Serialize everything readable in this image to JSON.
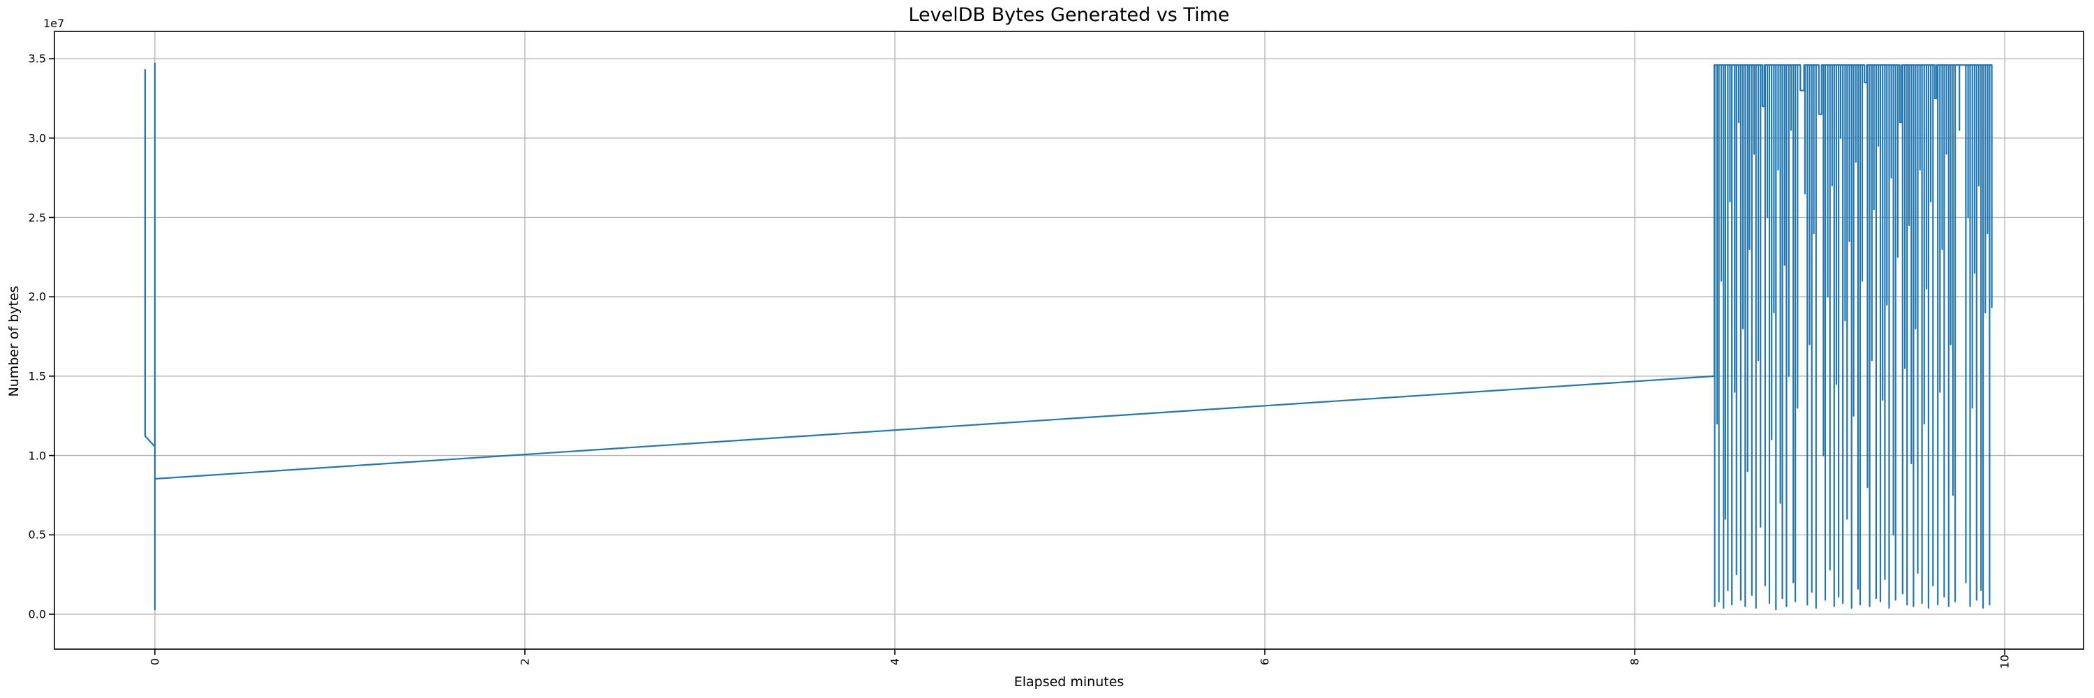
{
  "page": {
    "background": "#ffffff"
  },
  "chart_data": {
    "type": "line",
    "title": "LevelDB Bytes Generated vs Time",
    "xlabel": "Elapsed minutes",
    "ylabel": "Number of bytes",
    "y_offset_text": "1e7",
    "grid": true,
    "legend": "none",
    "line_color": "#1f77b4",
    "grid_color": "#b0b0b0",
    "spine_color": "#000000",
    "xlim": [
      -0.543,
      10.426
    ],
    "ylim": [
      -2200000,
      36720000
    ],
    "xticks": {
      "values": [
        0,
        2,
        4,
        6,
        8,
        10
      ],
      "labels": [
        "0",
        "2",
        "4",
        "6",
        "8",
        "10"
      ],
      "rotation": 90
    },
    "yticks": {
      "values": [
        0,
        5000000,
        10000000,
        15000000,
        20000000,
        25000000,
        30000000,
        35000000
      ],
      "labels": [
        "0.0",
        "0.5",
        "1.0",
        "1.5",
        "2.0",
        "2.5",
        "3.0",
        "3.5"
      ]
    },
    "series": [
      {
        "name": "leveldb-bytes-generated",
        "key_points": [
          [
            -0.053,
            11300000
          ],
          [
            -0.053,
            34300000
          ],
          [
            -0.053,
            11220000
          ],
          [
            0,
            10560000
          ],
          [
            0,
            34700000
          ],
          [
            0,
            300000
          ],
          [
            0,
            8530000
          ],
          [
            8.43,
            15000000
          ]
        ],
        "oscillation": {
          "t_start": 8.43,
          "top": 34600000,
          "needles": [
            [
              8.432,
              500000
            ],
            [
              8.445,
              12000000
            ],
            [
              8.455,
              800000
            ],
            [
              8.468,
              21000000
            ],
            [
              8.48,
              400000
            ],
            [
              8.49,
              6000000
            ],
            [
              8.503,
              1500000
            ],
            [
              8.515,
              26000000
            ],
            [
              8.525,
              600000
            ],
            [
              8.54,
              14000000
            ],
            [
              8.55,
              2500000
            ],
            [
              8.562,
              31000000
            ],
            [
              8.573,
              900000
            ],
            [
              8.585,
              18000000
            ],
            [
              8.597,
              500000
            ],
            [
              8.61,
              9000000
            ],
            [
              8.62,
              23000000
            ],
            [
              8.633,
              1200000
            ],
            [
              8.645,
              29000000
            ],
            [
              8.655,
              400000
            ],
            [
              8.668,
              16000000
            ],
            [
              8.68,
              5500000
            ],
            [
              8.69,
              32000000,
              0.01
            ],
            [
              8.705,
              1800000
            ],
            [
              8.717,
              25000000
            ],
            [
              8.728,
              700000
            ],
            [
              8.74,
              11000000
            ],
            [
              8.752,
              19000000
            ],
            [
              8.763,
              300000
            ],
            [
              8.775,
              28000000
            ],
            [
              8.787,
              7000000
            ],
            [
              8.798,
              1000000
            ],
            [
              8.81,
              22000000
            ],
            [
              8.82,
              500000
            ],
            [
              8.833,
              15000000
            ],
            [
              8.845,
              30500000
            ],
            [
              8.857,
              2000000
            ],
            [
              8.868,
              800000
            ],
            [
              8.88,
              13000000
            ],
            [
              8.895,
              33000000,
              0.02
            ],
            [
              8.92,
              26500000
            ],
            [
              8.933,
              600000
            ],
            [
              8.945,
              17000000
            ],
            [
              8.957,
              1400000
            ],
            [
              8.968,
              24000000
            ],
            [
              8.98,
              400000
            ],
            [
              8.995,
              31500000,
              0.015
            ],
            [
              9.02,
              10000000
            ],
            [
              9.03,
              900000
            ],
            [
              9.043,
              20000000
            ],
            [
              9.055,
              2800000
            ],
            [
              9.067,
              27000000
            ],
            [
              9.078,
              500000
            ],
            [
              9.09,
              14500000
            ],
            [
              9.102,
              1100000
            ],
            [
              9.113,
              30000000
            ],
            [
              9.125,
              700000
            ],
            [
              9.137,
              18500000
            ],
            [
              9.148,
              6000000
            ],
            [
              9.16,
              23500000
            ],
            [
              9.172,
              400000
            ],
            [
              9.183,
              12500000
            ],
            [
              9.195,
              28500000
            ],
            [
              9.207,
              1600000
            ],
            [
              9.218,
              600000
            ],
            [
              9.23,
              21000000
            ],
            [
              9.242,
              33500000,
              0.012
            ],
            [
              9.258,
              8000000
            ],
            [
              9.27,
              500000
            ],
            [
              9.282,
              16000000
            ],
            [
              9.293,
              25500000
            ],
            [
              9.305,
              1000000
            ],
            [
              9.317,
              29500000
            ],
            [
              9.328,
              800000
            ],
            [
              9.34,
              13500000
            ],
            [
              9.352,
              2200000
            ],
            [
              9.363,
              19500000
            ],
            [
              9.375,
              400000
            ],
            [
              9.387,
              27500000
            ],
            [
              9.398,
              5000000
            ],
            [
              9.41,
              900000
            ],
            [
              9.422,
              22500000
            ],
            [
              9.433,
              31000000,
              0.01
            ],
            [
              9.448,
              1300000
            ],
            [
              9.46,
              15500000
            ],
            [
              9.472,
              600000
            ],
            [
              9.483,
              24500000
            ],
            [
              9.495,
              9500000
            ],
            [
              9.507,
              500000
            ],
            [
              9.518,
              18000000
            ],
            [
              9.53,
              2600000
            ],
            [
              9.542,
              28000000
            ],
            [
              9.553,
              700000
            ],
            [
              9.565,
              12000000
            ],
            [
              9.577,
              20500000
            ],
            [
              9.588,
              400000
            ],
            [
              9.6,
              26000000
            ],
            [
              9.612,
              1800000
            ],
            [
              9.623,
              32500000,
              0.01
            ],
            [
              9.638,
              600000
            ],
            [
              9.65,
              14000000
            ],
            [
              9.662,
              23000000
            ],
            [
              9.673,
              1100000
            ],
            [
              9.685,
              29000000
            ],
            [
              9.697,
              500000
            ],
            [
              9.708,
              17000000
            ],
            [
              9.72,
              7500000
            ],
            [
              9.732,
              800000
            ],
            [
              9.755,
              30500000
            ],
            [
              9.79,
              2000000
            ],
            [
              9.802,
              25000000
            ],
            [
              9.813,
              500000
            ],
            [
              9.825,
              13000000
            ],
            [
              9.837,
              21500000
            ],
            [
              9.848,
              900000
            ],
            [
              9.86,
              27000000
            ],
            [
              9.872,
              1500000
            ],
            [
              9.883,
              400000
            ],
            [
              9.895,
              19000000
            ],
            [
              9.907,
              24000000
            ],
            [
              9.918,
              600000
            ]
          ],
          "end": [
            9.93,
            19300000
          ]
        }
      }
    ]
  }
}
